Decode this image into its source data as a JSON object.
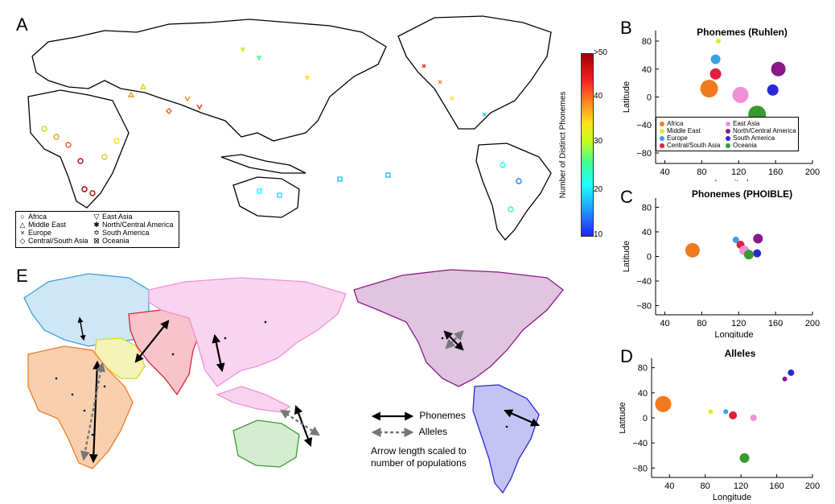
{
  "panel_letters": {
    "a": "A",
    "b": "B",
    "c": "C",
    "d": "D",
    "e": "E"
  },
  "panel_a": {
    "colorbar": {
      "title": "Number of Distinct Phonemes",
      "ticks": [
        ">50",
        "40",
        "30",
        "20",
        "10"
      ]
    },
    "legend": [
      {
        "symbol": "○",
        "label": "Africa"
      },
      {
        "symbol": "△",
        "label": "Middle East"
      },
      {
        "symbol": "×",
        "label": "Europe"
      },
      {
        "symbol": "◇",
        "label": "Central/South Asia"
      },
      {
        "symbol": "▽",
        "label": "East Asia"
      },
      {
        "symbol": "✱",
        "label": "North/Central America"
      },
      {
        "symbol": "✡",
        "label": "South America"
      },
      {
        "symbol": "⊠",
        "label": "Oceania"
      }
    ]
  },
  "panel_e": {
    "legend": {
      "phonemes": "Phonemes",
      "alleles": "Alleles",
      "note_line1": "Arrow length scaled to",
      "note_line2": "number of populations"
    },
    "region_colors": {
      "africa": "#f07a1e",
      "middle_east": "#e8e830",
      "europe": "#3aa0e0",
      "central_south_asia": "#e0203a",
      "east_asia": "#f090d8",
      "north_central_america": "#8a1888",
      "south_america": "#2828d8",
      "oceania": "#3a9a30"
    }
  },
  "region_legend": [
    {
      "label": "Africa",
      "color": "#f07a1e"
    },
    {
      "label": "Middle East",
      "color": "#e8e830"
    },
    {
      "label": "Europe",
      "color": "#3aa0e0"
    },
    {
      "label": "Central/South Asia",
      "color": "#e0203a"
    },
    {
      "label": "East Asia",
      "color": "#f090d8"
    },
    {
      "label": "North/Central America",
      "color": "#8a1888"
    },
    {
      "label": "South America",
      "color": "#2828d8"
    },
    {
      "label": "Oceania",
      "color": "#3a9a30"
    }
  ],
  "chart_data": [
    {
      "type": "scatter",
      "title": "Phonemes (Ruhlen)",
      "xlabel": "Longitude",
      "ylabel": "Latitude",
      "xlim": [
        30,
        200
      ],
      "ylim": [
        -95,
        95
      ],
      "xticks": [
        "40",
        "80",
        "120",
        "160",
        "200"
      ],
      "yticks": [
        "80",
        "40",
        "0",
        "−40",
        "−80"
      ],
      "legend": "bottom",
      "points": [
        {
          "region": "Africa",
          "x": 88,
          "y": 12,
          "size": 11,
          "color": "#f07a1e"
        },
        {
          "region": "Middle East",
          "x": 98,
          "y": 80,
          "size": 3,
          "color": "#e8e830"
        },
        {
          "region": "Europe",
          "x": 95,
          "y": 54,
          "size": 6,
          "color": "#3aa0e0"
        },
        {
          "region": "Central/South Asia",
          "x": 95,
          "y": 33,
          "size": 7,
          "color": "#e0203a"
        },
        {
          "region": "East Asia",
          "x": 122,
          "y": 3,
          "size": 10,
          "color": "#f090d8"
        },
        {
          "region": "North/Central America",
          "x": 163,
          "y": 40,
          "size": 9,
          "color": "#8a1888"
        },
        {
          "region": "South America",
          "x": 157,
          "y": 10,
          "size": 7,
          "color": "#2828d8"
        },
        {
          "region": "Oceania",
          "x": 140,
          "y": -25,
          "size": 11,
          "color": "#3a9a30"
        }
      ]
    },
    {
      "type": "scatter",
      "title": "Phonemes (PHOIBLE)",
      "xlabel": "Longitude",
      "ylabel": "Latitude",
      "xlim": [
        30,
        200
      ],
      "ylim": [
        -95,
        95
      ],
      "xticks": [
        "40",
        "80",
        "120",
        "160",
        "200"
      ],
      "yticks": [
        "80",
        "40",
        "0",
        "−40",
        "−80"
      ],
      "points": [
        {
          "region": "Africa",
          "x": 70,
          "y": 10,
          "size": 9,
          "color": "#f07a1e"
        },
        {
          "region": "Middle East",
          "x": 125,
          "y": 10,
          "size": 3,
          "color": "#e8e830"
        },
        {
          "region": "Europe",
          "x": 117,
          "y": 27,
          "size": 4,
          "color": "#3aa0e0"
        },
        {
          "region": "Central/South Asia",
          "x": 122,
          "y": 19,
          "size": 5,
          "color": "#e0203a"
        },
        {
          "region": "East Asia",
          "x": 126,
          "y": 10,
          "size": 6,
          "color": "#f090d8"
        },
        {
          "region": "North/Central America",
          "x": 141,
          "y": 29,
          "size": 6,
          "color": "#8a1888"
        },
        {
          "region": "South America",
          "x": 140,
          "y": 5,
          "size": 5,
          "color": "#2828d8"
        },
        {
          "region": "Oceania",
          "x": 131,
          "y": 3,
          "size": 6,
          "color": "#3a9a30"
        }
      ]
    },
    {
      "type": "scatter",
      "title": "Alleles",
      "xlabel": "Longitude",
      "ylabel": "Latitude",
      "xlim": [
        20,
        200
      ],
      "ylim": [
        -95,
        95
      ],
      "xticks": [
        "40",
        "80",
        "120",
        "160",
        "200"
      ],
      "yticks": [
        "80",
        "40",
        "0",
        "−40",
        "−80"
      ],
      "points": [
        {
          "region": "Africa",
          "x": 33,
          "y": 22,
          "size": 10,
          "color": "#f07a1e"
        },
        {
          "region": "Middle East",
          "x": 86,
          "y": 10,
          "size": 3,
          "color": "#e8e830"
        },
        {
          "region": "Europe",
          "x": 103,
          "y": 10,
          "size": 3,
          "color": "#3aa0e0"
        },
        {
          "region": "Central/South Asia",
          "x": 111,
          "y": 4,
          "size": 5,
          "color": "#e0203a"
        },
        {
          "region": "East Asia",
          "x": 134,
          "y": 0,
          "size": 4,
          "color": "#f090d8"
        },
        {
          "region": "North/Central America",
          "x": 169,
          "y": 62,
          "size": 3,
          "color": "#8a1888"
        },
        {
          "region": "South America",
          "x": 176,
          "y": 72,
          "size": 4,
          "color": "#2828d8"
        },
        {
          "region": "Oceania",
          "x": 124,
          "y": -64,
          "size": 6,
          "color": "#3a9a30"
        }
      ]
    }
  ]
}
